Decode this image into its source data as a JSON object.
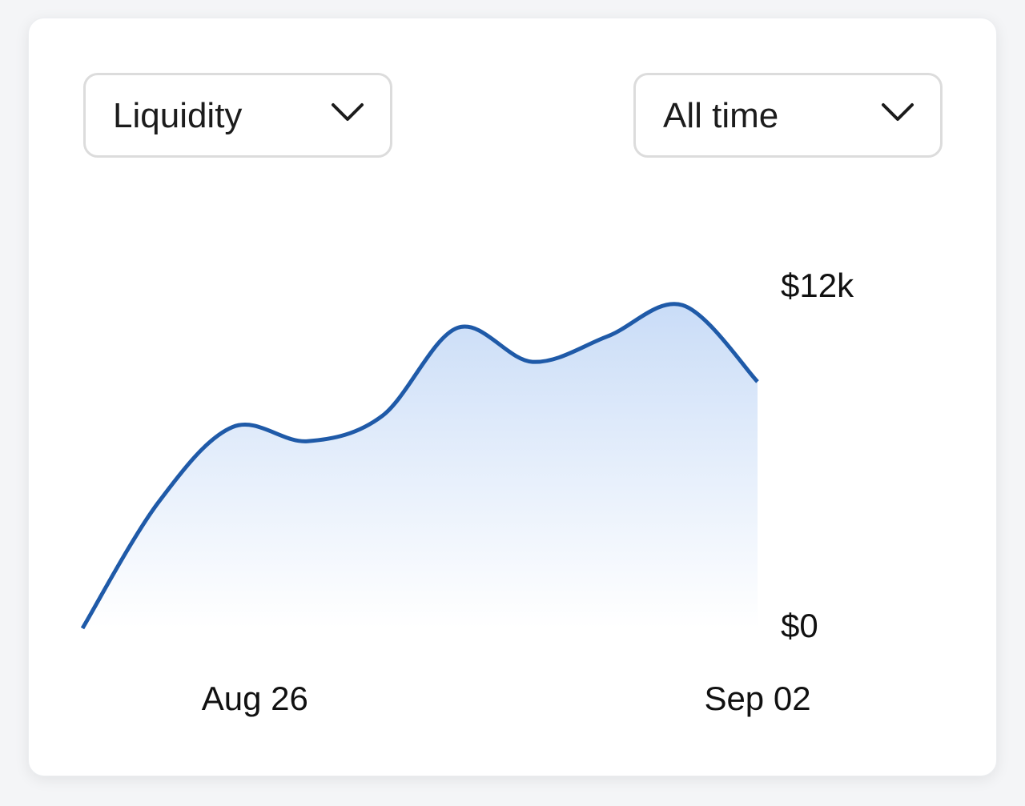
{
  "controls": {
    "metric": "Liquidity",
    "range": "All time"
  },
  "chart_data": {
    "type": "line",
    "categories": [
      null,
      null,
      "Aug 26",
      null,
      null,
      null,
      null,
      null,
      null,
      "Sep 02"
    ],
    "series": [
      {
        "name": "Liquidity",
        "color": "#1f5aa8",
        "values": [
          0,
          4400,
          7100,
          6600,
          7500,
          10600,
          9400,
          10300,
          11400,
          8700
        ]
      }
    ],
    "ylim": [
      0,
      12000
    ],
    "yticks": [
      {
        "value": 0,
        "label": "$0"
      },
      {
        "value": 12000,
        "label": "$12k"
      }
    ]
  }
}
